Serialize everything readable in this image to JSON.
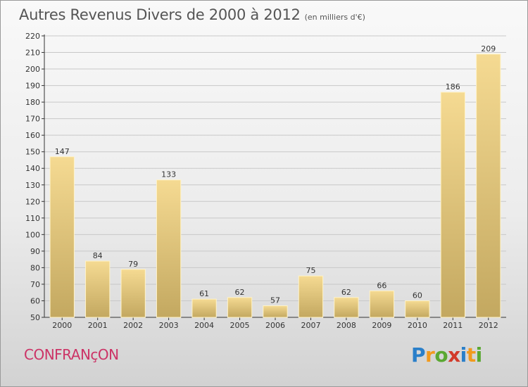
{
  "page": {
    "title": "Autres Revenus Divers de 2000 à 2012",
    "subtitle": "(en milliers d'€)",
    "commune": "CONFRANçON",
    "logo": {
      "letters": [
        "P",
        "r",
        "o",
        "x",
        "i",
        "t",
        "i"
      ],
      "colors": [
        "#2a7fc9",
        "#f29a1d",
        "#5aa832",
        "#d23a2a",
        "#2a7fc9",
        "#f29a1d",
        "#5aa832"
      ]
    }
  },
  "chart_data": {
    "type": "bar",
    "title": "Autres Revenus Divers de 2000 à 2012",
    "subtitle": "(en milliers d'€)",
    "categories": [
      "2000",
      "2001",
      "2002",
      "2003",
      "2004",
      "2005",
      "2006",
      "2007",
      "2008",
      "2009",
      "2010",
      "2011",
      "2012"
    ],
    "values": [
      147,
      84,
      79,
      133,
      61,
      62,
      57,
      75,
      62,
      66,
      60,
      186,
      209
    ],
    "ylim": [
      50,
      220
    ],
    "yticks": [
      50,
      60,
      70,
      80,
      90,
      100,
      110,
      120,
      130,
      140,
      150,
      160,
      170,
      180,
      190,
      200,
      210,
      220
    ],
    "grid": true,
    "bar_color": "#f2d58c",
    "bar_color_shade": "#c5aa62"
  }
}
